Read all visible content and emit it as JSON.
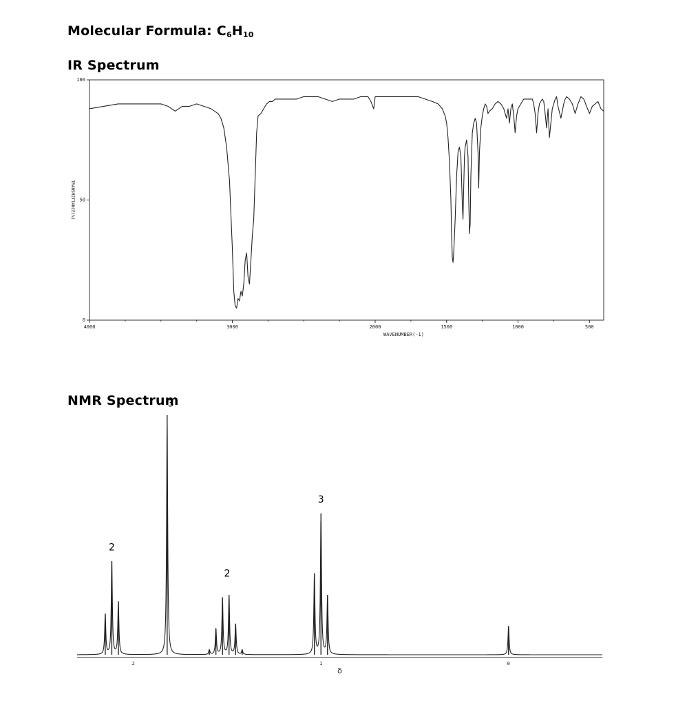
{
  "header": {
    "formula_label": "Molecular Formula: ",
    "formula_C": "C",
    "formula_C_sub": "6",
    "formula_H": "H",
    "formula_H_sub": "10"
  },
  "chart_data": [
    {
      "type": "line",
      "title": "IR Spectrum",
      "xlabel": "WAVENUMBER(-1)",
      "ylabel": "TRANSMITTANCE(%)",
      "xlim": [
        4000,
        400
      ],
      "ylim": [
        0,
        100
      ],
      "x_ticks": [
        4000,
        3000,
        2000,
        1500,
        1000,
        500
      ],
      "x_tick_labels": [
        "4000",
        "3000",
        "2000",
        "1500",
        "1000",
        "500"
      ],
      "y_ticks": [
        0,
        50,
        100
      ],
      "y_tick_labels": [
        "0",
        "50",
        "100"
      ],
      "x": [
        4000,
        3900,
        3800,
        3700,
        3600,
        3500,
        3450,
        3400,
        3350,
        3300,
        3250,
        3200,
        3150,
        3100,
        3080,
        3060,
        3040,
        3020,
        3000,
        2990,
        2980,
        2970,
        2960,
        2950,
        2940,
        2930,
        2920,
        2910,
        2900,
        2890,
        2880,
        2870,
        2860,
        2850,
        2840,
        2830,
        2820,
        2800,
        2780,
        2760,
        2740,
        2720,
        2700,
        2650,
        2600,
        2550,
        2500,
        2450,
        2400,
        2350,
        2300,
        2250,
        2200,
        2150,
        2100,
        2050,
        2030,
        2010,
        2000,
        1950,
        1900,
        1850,
        1800,
        1750,
        1700,
        1650,
        1600,
        1560,
        1530,
        1510,
        1500,
        1490,
        1480,
        1470,
        1465,
        1460,
        1455,
        1450,
        1440,
        1430,
        1420,
        1410,
        1400,
        1390,
        1385,
        1380,
        1375,
        1370,
        1360,
        1350,
        1345,
        1340,
        1335,
        1330,
        1320,
        1310,
        1300,
        1290,
        1280,
        1275,
        1270,
        1260,
        1250,
        1240,
        1230,
        1220,
        1210,
        1200,
        1180,
        1160,
        1140,
        1120,
        1100,
        1090,
        1080,
        1070,
        1060,
        1050,
        1040,
        1030,
        1020,
        1010,
        1000,
        980,
        960,
        940,
        920,
        900,
        890,
        880,
        870,
        860,
        850,
        840,
        830,
        820,
        810,
        800,
        790,
        780,
        760,
        740,
        730,
        720,
        700,
        680,
        670,
        660,
        640,
        620,
        600,
        580,
        560,
        540,
        520,
        500,
        480,
        460,
        440,
        420,
        400
      ],
      "y": [
        88,
        89,
        90,
        90,
        90,
        90,
        89,
        87,
        89,
        89,
        90,
        89,
        88,
        86,
        84,
        80,
        72,
        58,
        30,
        12,
        6,
        5,
        9,
        8,
        12,
        10,
        15,
        25,
        28,
        18,
        15,
        25,
        35,
        42,
        60,
        78,
        85,
        86,
        88,
        90,
        91,
        91,
        92,
        92,
        92,
        92,
        93,
        93,
        93,
        92,
        91,
        92,
        92,
        92,
        93,
        93,
        91,
        88,
        93,
        93,
        93,
        93,
        93,
        93,
        93,
        92,
        91,
        90,
        88,
        85,
        82,
        76,
        66,
        50,
        36,
        26,
        24,
        28,
        42,
        60,
        70,
        72,
        68,
        48,
        42,
        55,
        68,
        72,
        75,
        68,
        50,
        36,
        40,
        60,
        78,
        82,
        84,
        82,
        70,
        55,
        70,
        80,
        85,
        88,
        90,
        89,
        86,
        87,
        88,
        90,
        91,
        90,
        88,
        86,
        84,
        88,
        82,
        88,
        90,
        85,
        78,
        85,
        88,
        90,
        92,
        92,
        92,
        92,
        90,
        86,
        78,
        86,
        90,
        91,
        92,
        91,
        86,
        80,
        88,
        76,
        88,
        92,
        93,
        89,
        84,
        90,
        92,
        93,
        92,
        90,
        86,
        90,
        93,
        92,
        89,
        86,
        89,
        90,
        91,
        88,
        87
      ],
      "grid": false
    },
    {
      "type": "line",
      "title": "NMR Spectrum",
      "xlabel": "δ",
      "xlim": [
        2.3,
        -0.5
      ],
      "x_ticks": [
        2,
        1,
        0
      ],
      "x_tick_labels": [
        "2",
        "1",
        "0"
      ],
      "peaks": [
        {
          "shift": 2.15,
          "height": 0.17
        },
        {
          "shift": 2.115,
          "height": 0.39
        },
        {
          "shift": 2.08,
          "height": 0.22
        },
        {
          "shift": 1.82,
          "height": 1.0
        },
        {
          "shift": 1.595,
          "height": 0.02
        },
        {
          "shift": 1.56,
          "height": 0.11
        },
        {
          "shift": 1.525,
          "height": 0.24
        },
        {
          "shift": 1.49,
          "height": 0.25
        },
        {
          "shift": 1.455,
          "height": 0.13
        },
        {
          "shift": 1.42,
          "height": 0.02
        },
        {
          "shift": 1.035,
          "height": 0.34
        },
        {
          "shift": 1.0,
          "height": 0.59
        },
        {
          "shift": 0.965,
          "height": 0.25
        },
        {
          "shift": 0.0,
          "height": 0.12
        }
      ],
      "annotations": [
        {
          "x": 2.115,
          "text": "2",
          "height": 0.43
        },
        {
          "x": 1.8,
          "text": "3",
          "height": 1.03
        },
        {
          "x": 1.5,
          "text": "2",
          "height": 0.32
        },
        {
          "x": 1.0,
          "text": "3",
          "height": 0.63
        }
      ]
    }
  ]
}
